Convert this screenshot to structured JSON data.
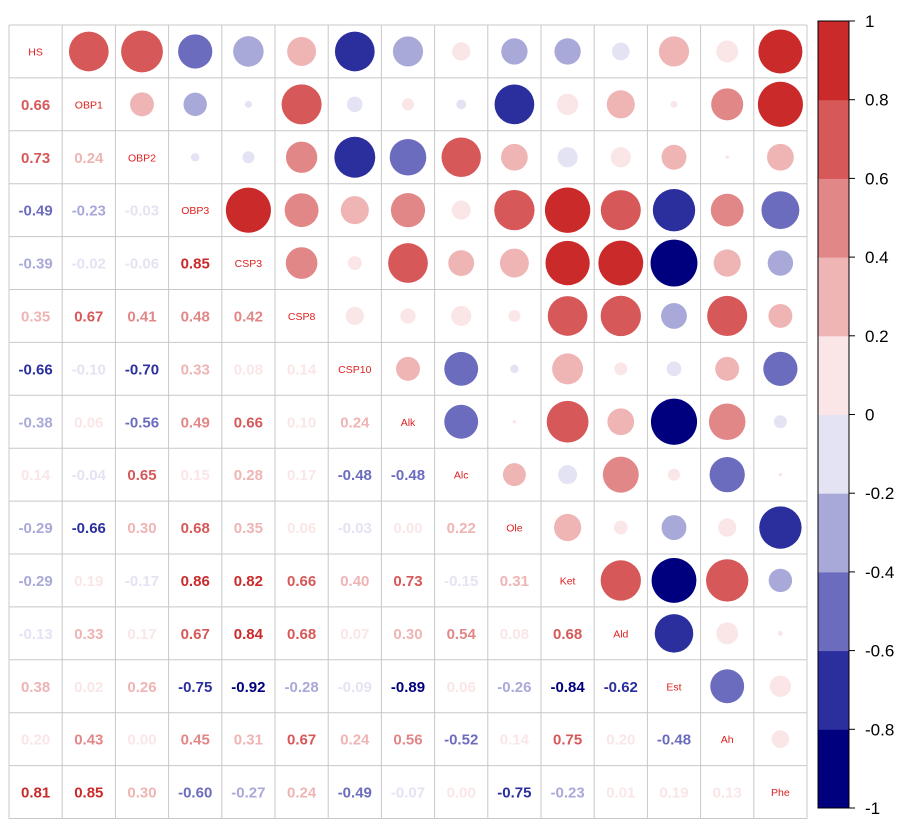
{
  "chart_data": {
    "type": "heatmap",
    "variables": [
      "HS",
      "OBP1",
      "OBP2",
      "OBP3",
      "CSP3",
      "CSP8",
      "CSP10",
      "Alk",
      "Alc",
      "Ole",
      "Ket",
      "Ald",
      "Est",
      "Ah",
      "Phe"
    ],
    "layout": "mixed",
    "lower": "number",
    "upper": "circle",
    "diagonal": "variable names",
    "lower_values": [
      [],
      [
        0.66
      ],
      [
        0.73,
        0.24
      ],
      [
        -0.49,
        -0.23,
        -0.03
      ],
      [
        -0.39,
        -0.02,
        -0.06,
        0.85
      ],
      [
        0.35,
        0.67,
        0.41,
        0.48,
        0.42
      ],
      [
        -0.66,
        -0.1,
        -0.7,
        0.33,
        0.08,
        0.14
      ],
      [
        -0.38,
        0.06,
        -0.56,
        0.49,
        0.66,
        0.1,
        0.24
      ],
      [
        0.14,
        -0.04,
        0.65,
        0.15,
        0.28,
        0.17,
        -0.48,
        -0.48
      ],
      [
        -0.29,
        -0.66,
        0.3,
        0.68,
        0.35,
        0.06,
        -0.03,
        0.0,
        0.22
      ],
      [
        -0.29,
        0.19,
        -0.17,
        0.86,
        0.82,
        0.66,
        0.4,
        0.73,
        -0.15,
        0.31
      ],
      [
        -0.13,
        0.33,
        0.17,
        0.67,
        0.84,
        0.68,
        0.07,
        0.3,
        0.54,
        0.08,
        0.68
      ],
      [
        0.38,
        0.02,
        0.26,
        -0.75,
        -0.92,
        -0.28,
        -0.09,
        -0.89,
        0.06,
        -0.26,
        -0.84,
        -0.62
      ],
      [
        0.2,
        0.43,
        0.0,
        0.45,
        0.31,
        0.67,
        0.24,
        0.56,
        -0.52,
        0.14,
        0.75,
        0.2,
        -0.48
      ],
      [
        0.81,
        0.85,
        0.3,
        -0.6,
        -0.27,
        0.24,
        -0.49,
        -0.07,
        0.0,
        -0.75,
        -0.23,
        0.01,
        0.19,
        0.13
      ]
    ],
    "colorbar": {
      "range": [
        -1,
        1
      ],
      "ticks": [
        "-1",
        "-0.8",
        "-0.6",
        "-0.4",
        "-0.2",
        "0",
        "0.2",
        "0.4",
        "0.6",
        "0.8",
        "1"
      ],
      "colors": [
        "#00007f",
        "#2b2f9e",
        "#6c6cbf",
        "#a9a9d9",
        "#e3e3f3",
        "#fae6e6",
        "#efb4b4",
        "#e28787",
        "#d65858",
        "#ca2a2a"
      ]
    },
    "grid": true,
    "colorbar_position": "right"
  }
}
